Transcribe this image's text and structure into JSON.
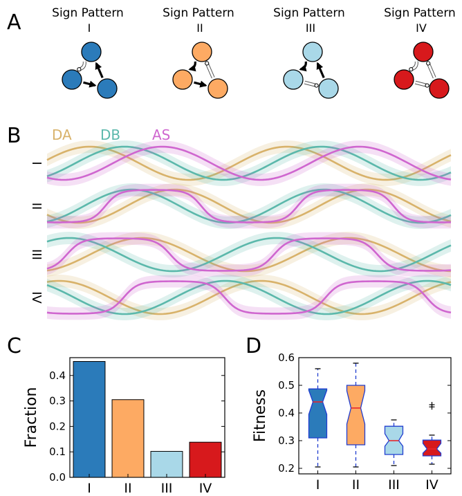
{
  "panel_labels": {
    "a": "A",
    "b": "B",
    "c": "C",
    "d": "D"
  },
  "colors": {
    "I": "#2b7bba",
    "II": "#fdaa63",
    "III": "#a9d8e8",
    "IV": "#d7191c",
    "DA": "#d8b26a",
    "DB": "#5bb8ab",
    "AS": "#cf66cf",
    "median": "#e8262b",
    "box_edge": "#1f3ccf"
  },
  "panel_a": {
    "motifs": [
      {
        "title": "Sign Pattern",
        "numeral": "I",
        "color_key": "I"
      },
      {
        "title": "Sign Pattern",
        "numeral": "II",
        "color_key": "II"
      },
      {
        "title": "Sign Pattern",
        "numeral": "III",
        "color_key": "III"
      },
      {
        "title": "Sign Pattern",
        "numeral": "IV",
        "color_key": "IV"
      }
    ]
  },
  "panel_b": {
    "legend": [
      {
        "name": "DA",
        "color_key": "DA"
      },
      {
        "name": "DB",
        "color_key": "DB"
      },
      {
        "name": "AS",
        "color_key": "AS"
      }
    ],
    "rows": [
      "I",
      "II",
      "III",
      "IV"
    ]
  },
  "chart_data": [
    {
      "type": "bar",
      "panel": "C",
      "categories": [
        "I",
        "II",
        "III",
        "IV"
      ],
      "values": [
        0.455,
        0.305,
        0.102,
        0.138
      ],
      "ylabel": "Fraction",
      "ylim": [
        0,
        0.47
      ],
      "yticks": [
        "0.0",
        "0.1",
        "0.2",
        "0.3",
        "0.4"
      ],
      "ytick_values": [
        0,
        0.1,
        0.2,
        0.3,
        0.4
      ]
    },
    {
      "type": "box",
      "panel": "D",
      "categories": [
        "I",
        "II",
        "III",
        "IV"
      ],
      "ylabel": "Fitness",
      "ylim": [
        0.18,
        0.6
      ],
      "yticks": [
        "0.2",
        "0.3",
        "0.4",
        "0.5",
        "0.6"
      ],
      "ytick_values": [
        0.2,
        0.3,
        0.4,
        0.5,
        0.6
      ],
      "boxes": [
        {
          "whislo": 0.205,
          "q1": 0.31,
          "med": 0.44,
          "q3": 0.487,
          "whishi": 0.56,
          "notch_lo": 0.395,
          "notch_hi": 0.482,
          "fliers": []
        },
        {
          "whislo": 0.205,
          "q1": 0.285,
          "med": 0.418,
          "q3": 0.5,
          "whishi": 0.58,
          "notch_lo": 0.36,
          "notch_hi": 0.48,
          "fliers": []
        },
        {
          "whislo": 0.21,
          "q1": 0.25,
          "med": 0.3,
          "q3": 0.352,
          "whishi": 0.375,
          "notch_lo": 0.28,
          "notch_hi": 0.325,
          "fliers": []
        },
        {
          "whislo": 0.215,
          "q1": 0.245,
          "med": 0.27,
          "q3": 0.302,
          "whishi": 0.32,
          "notch_lo": 0.255,
          "notch_hi": 0.29,
          "fliers": [
            0.43,
            0.422
          ]
        }
      ]
    }
  ]
}
